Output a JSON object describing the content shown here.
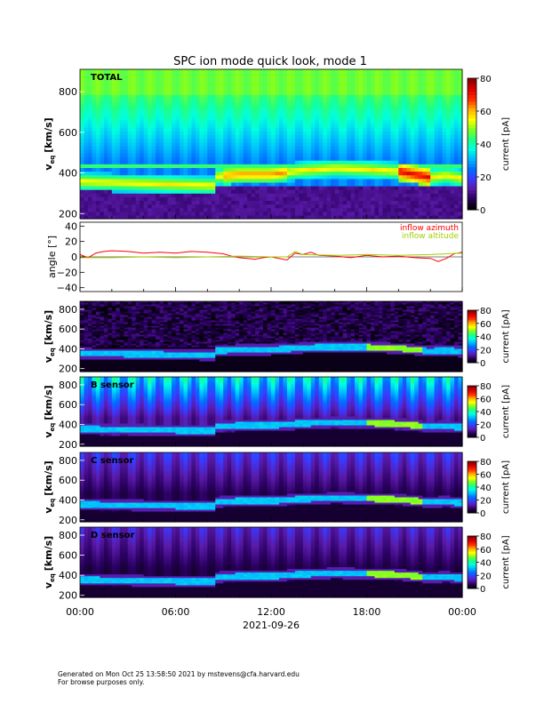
{
  "title": "SPC ion mode quick look, mode 1",
  "footer": {
    "line1": "Generated on Mon Oct 25 13:58:50 2021 by mstevens@cfa.harvard.edu",
    "line2": "For browse purposes only."
  },
  "colors": {
    "background": "#000000",
    "azimuth": "#ff0000",
    "altitude": "#a0d000",
    "colormap": [
      "#000000",
      "#2a0060",
      "#5a1aa8",
      "#3a3aff",
      "#0070ff",
      "#00b8ff",
      "#00ffe0",
      "#20ff80",
      "#80ff20",
      "#ffff00",
      "#ffb000",
      "#ff3000",
      "#e00000",
      "#900000"
    ]
  },
  "chart_data": [
    {
      "type": "heatmap",
      "panel": "total",
      "label": "TOTAL",
      "ylabel": "v",
      "ylabel_sub": "eq",
      "ylabel_unit": "[km/s]",
      "ylim": [
        175,
        910
      ],
      "yticks": [
        "200",
        "400",
        "600",
        "800"
      ],
      "colorbar": {
        "label": "current [pA]",
        "range": [
          0,
          80
        ],
        "ticks": [
          "0",
          "20",
          "40",
          "60",
          "80"
        ]
      },
      "x_range": [
        "2021-09-26 00:00",
        "2021-09-27 00:00"
      ]
    },
    {
      "type": "line",
      "panel": "angle",
      "ylabel": "angle [°]",
      "ylim": [
        -45,
        45
      ],
      "yticks": [
        "−40",
        "−20",
        "0",
        "20",
        "40"
      ],
      "series": [
        {
          "name": "inflow azimuth",
          "color": "#ff0000",
          "x_hours": [
            0,
            0.5,
            1,
            1.5,
            2,
            3,
            4,
            5,
            6,
            7,
            8,
            9,
            9.5,
            10,
            10.5,
            11,
            11.5,
            12,
            12.5,
            13,
            13.5,
            14,
            14.5,
            15,
            16,
            17,
            18,
            19,
            20,
            21,
            22,
            22.5,
            23,
            23.5,
            24
          ],
          "y": [
            3,
            -1,
            5,
            7,
            8,
            7,
            5,
            6,
            5,
            7,
            6,
            4,
            1,
            -1,
            -2,
            -3,
            -1,
            0,
            -2,
            -4,
            5,
            3,
            6,
            2,
            1,
            -1,
            2,
            0,
            1,
            -1,
            -2,
            -6,
            -2,
            4,
            6
          ]
        },
        {
          "name": "inflow altitude",
          "color": "#a0d000",
          "x_hours": [
            0,
            2,
            4,
            6,
            8,
            10,
            12,
            13,
            13.5,
            14,
            16,
            18,
            20,
            22,
            23,
            24
          ],
          "y": [
            -1,
            -1,
            0,
            -1,
            0,
            1,
            0,
            0,
            7,
            3,
            2,
            3,
            2,
            3,
            4,
            5
          ]
        }
      ]
    },
    {
      "type": "heatmap",
      "panel": "sensor-a",
      "label": "",
      "ylabel": "v",
      "ylabel_sub": "eq",
      "ylabel_unit": "[km/s]",
      "ylim": [
        170,
        880
      ],
      "yticks": [
        "200",
        "400",
        "600",
        "800"
      ],
      "colorbar": {
        "label": "current [pA]",
        "range": [
          0,
          80
        ],
        "ticks": [
          "0",
          "20",
          "40",
          "60",
          "80"
        ]
      }
    },
    {
      "type": "heatmap",
      "panel": "sensor-b",
      "label": "B sensor",
      "ylabel": "v",
      "ylabel_sub": "eq",
      "ylabel_unit": "[km/s]",
      "ylim": [
        180,
        880
      ],
      "yticks": [
        "200",
        "400",
        "600",
        "800"
      ],
      "colorbar": {
        "label": "current [pA]",
        "range": [
          0,
          80
        ],
        "ticks": [
          "0",
          "20",
          "40",
          "60",
          "80"
        ]
      }
    },
    {
      "type": "heatmap",
      "panel": "sensor-c",
      "label": "C sensor",
      "ylabel": "v",
      "ylabel_sub": "eq",
      "ylabel_unit": "[km/s]",
      "ylim": [
        180,
        880
      ],
      "yticks": [
        "200",
        "400",
        "600",
        "800"
      ],
      "colorbar": {
        "label": "current [pA]",
        "range": [
          0,
          80
        ],
        "ticks": [
          "0",
          "20",
          "40",
          "60",
          "80"
        ]
      }
    },
    {
      "type": "heatmap",
      "panel": "sensor-d",
      "label": "D sensor",
      "ylabel": "v",
      "ylabel_sub": "eq",
      "ylabel_unit": "[km/s]",
      "ylim": [
        180,
        880
      ],
      "yticks": [
        "200",
        "400",
        "600",
        "800"
      ],
      "colorbar": {
        "label": "current [pA]",
        "range": [
          0,
          80
        ],
        "ticks": [
          "0",
          "20",
          "40",
          "60",
          "80"
        ]
      }
    }
  ],
  "time_axis": {
    "ticks": [
      "00:00",
      "06:00",
      "12:00",
      "18:00",
      "00:00"
    ],
    "date": "2021-09-26"
  },
  "bulk_speed": {
    "x_hours": [
      0,
      2,
      4,
      6,
      8.5,
      8.6,
      10,
      12,
      14,
      16,
      18,
      20,
      21,
      22,
      23,
      24
    ],
    "v_kms": [
      360,
      355,
      350,
      345,
      340,
      385,
      395,
      395,
      415,
      425,
      420,
      410,
      395,
      380,
      390,
      375
    ]
  }
}
